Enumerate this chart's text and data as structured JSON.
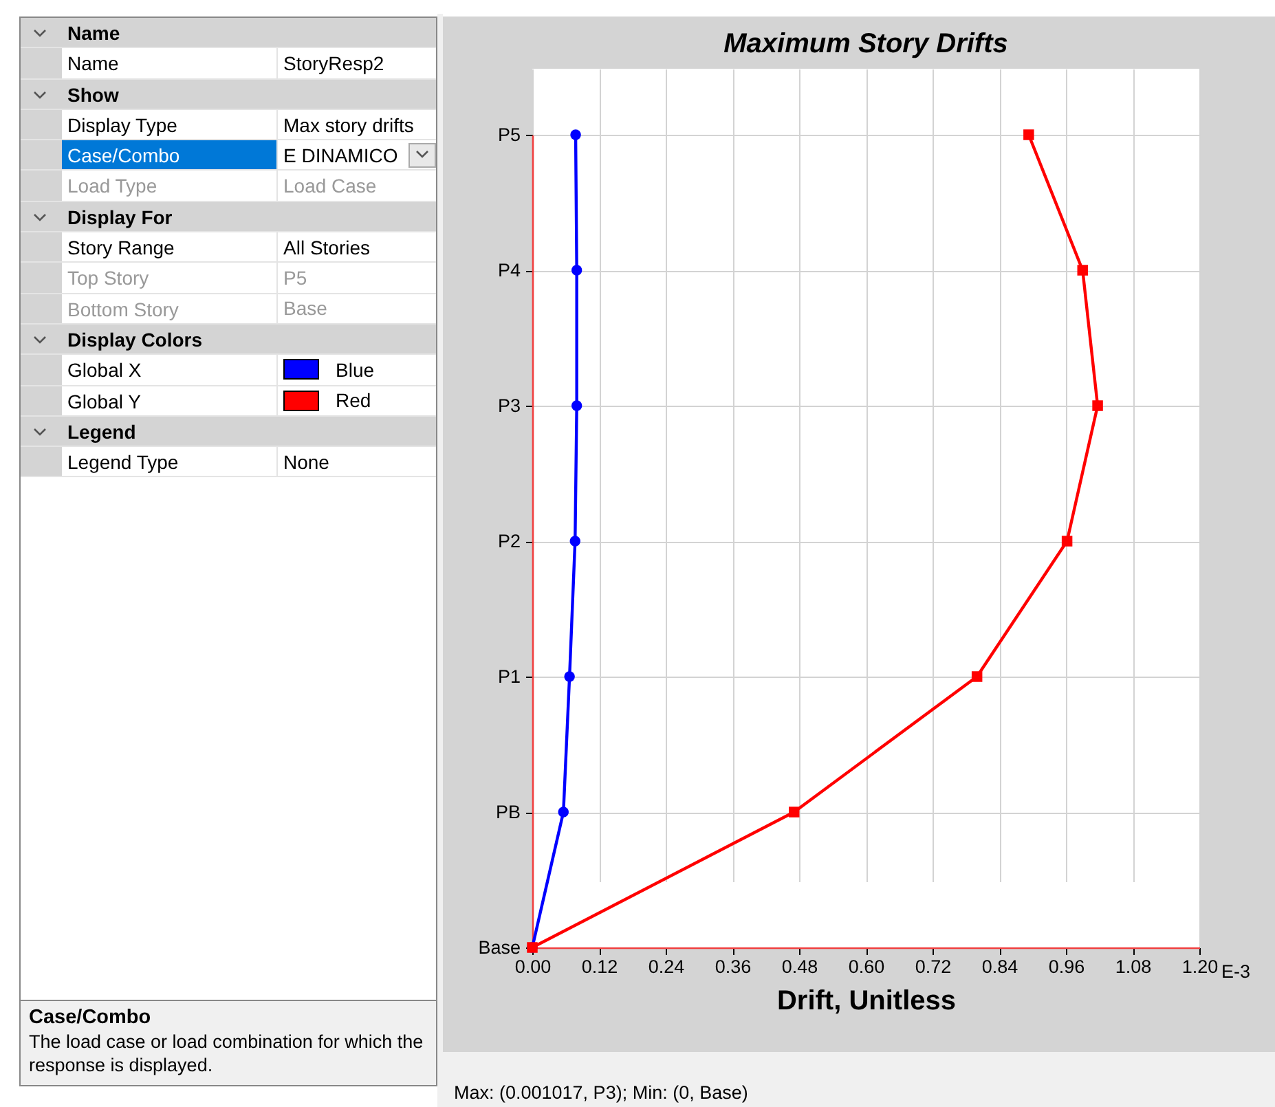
{
  "chart_data": [
    {
      "type": "other",
      "annotations": [
        "Name",
        "Name",
        "StoryResp2",
        "Show",
        "Display Type",
        "Max story drifts",
        "Case/Combo",
        "E DINAMICO",
        "Load Type",
        "Load Case",
        "Display For",
        "Story Range",
        "All Stories",
        "Top Story",
        "P5",
        "Bottom Story",
        "Base",
        "Display Colors",
        "Global X",
        "Blue",
        "Global Y",
        "Red",
        "Legend",
        "Legend Type",
        "None",
        "Case/Combo",
        "The load case or load combination for which the response is displayed."
      ]
    },
    {
      "type": "line",
      "orientation": "horizontal",
      "title": "Maximum Story Drifts",
      "xlabel": "Drift, Unitless",
      "categories": [
        "P5",
        "P4",
        "P3",
        "P2",
        "P1",
        "PB",
        "Base"
      ],
      "series": [
        {
          "color": "#0000ff",
          "marker": "circle",
          "values": [
            0.078,
            0.08,
            0.08,
            0.077,
            0.067,
            0.056,
            0
          ]
        },
        {
          "color": "#ff0000",
          "marker": "square",
          "values": [
            0.893,
            0.99,
            1.017,
            0.962,
            0.8,
            0.471,
            0
          ]
        }
      ],
      "xlim": [
        0,
        1.2
      ],
      "xticks": [
        {
          "value": 0,
          "label": "0.00"
        },
        {
          "value": 0.12,
          "label": "0.12"
        },
        {
          "value": 0.24,
          "label": "0.24"
        },
        {
          "value": 0.36,
          "label": "0.36"
        },
        {
          "value": 0.48,
          "label": "0.48"
        },
        {
          "value": 0.6,
          "label": "0.60"
        },
        {
          "value": 0.72,
          "label": "0.72"
        },
        {
          "value": 0.84,
          "label": "0.84"
        },
        {
          "value": 0.96,
          "label": "0.96"
        },
        {
          "value": 1.08,
          "label": "1.08"
        },
        {
          "value": 1.2,
          "label": "1.20"
        }
      ],
      "grid": true,
      "legend": false,
      "annotations": [
        "E-3",
        "Max: (0.001017, P3);   Min: (0, Base)"
      ]
    }
  ]
}
